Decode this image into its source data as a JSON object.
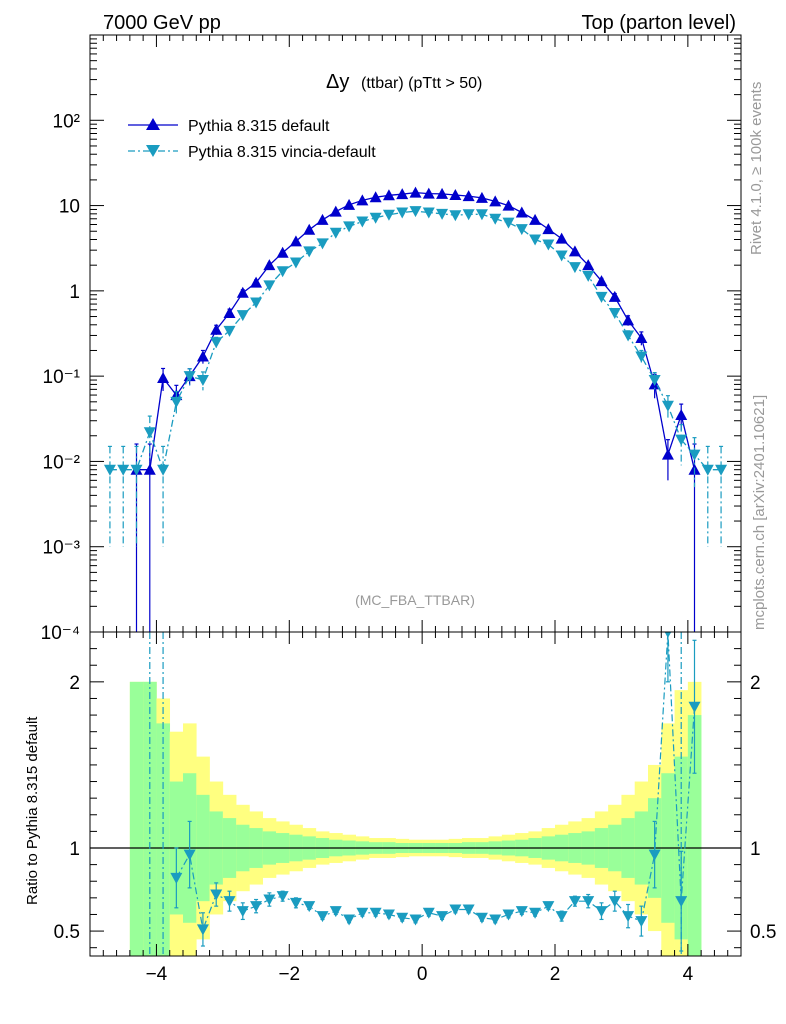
{
  "header": {
    "left": "7000 GeV pp",
    "right": "Top (parton level)"
  },
  "side_text": {
    "rivet": "Rivet 4.1.0, ≥ 100k events",
    "mcplots": "mcplots.cern.ch [arXiv:2401.10621]"
  },
  "chart_data": {
    "type": "line",
    "title_main": "Δy",
    "title_sub": "(ttbar) (pTtt > 50)",
    "analysis_id": "(MC_FBA_TTBAR)",
    "xlim": [
      -5,
      4.8
    ],
    "x_ticks": [
      -4,
      -2,
      0,
      2,
      4
    ],
    "x_tick_labels": [
      "−4",
      "−2",
      "0",
      "2",
      "4"
    ],
    "main": {
      "yscale": "log",
      "ylim": [
        0.0001,
        1000
      ],
      "y_ticks": [
        0.0001,
        0.001,
        0.01,
        0.1,
        1,
        10,
        100
      ],
      "y_tick_labels": [
        "10⁻⁴",
        "10⁻³",
        "10⁻²",
        "10⁻¹",
        "1",
        "10",
        "10²"
      ]
    },
    "ratio": {
      "ylabel": "Ratio to Pythia 8.315 default",
      "ylim": [
        0.35,
        2.3
      ],
      "y_ticks": [
        0.5,
        1,
        2
      ],
      "y_tick_labels": [
        "0.5",
        "1",
        "2"
      ],
      "reference_line": 1
    },
    "series": [
      {
        "name": "Pythia 8.315 default",
        "color": "#0000cc",
        "marker": "triangle-up",
        "line_style": "solid",
        "x": [
          -4.3,
          -4.1,
          -3.9,
          -3.7,
          -3.5,
          -3.3,
          -3.1,
          -2.9,
          -2.7,
          -2.5,
          -2.3,
          -2.1,
          -1.9,
          -1.7,
          -1.5,
          -1.3,
          -1.1,
          -0.9,
          -0.7,
          -0.5,
          -0.3,
          -0.1,
          0.1,
          0.3,
          0.5,
          0.7,
          0.9,
          1.1,
          1.3,
          1.5,
          1.7,
          1.9,
          2.1,
          2.3,
          2.5,
          2.7,
          2.9,
          3.1,
          3.3,
          3.5,
          3.7,
          3.9,
          4.1
        ],
        "y": [
          0.008,
          0.008,
          0.095,
          0.06,
          0.1,
          0.17,
          0.35,
          0.55,
          0.95,
          1.25,
          2.0,
          2.8,
          3.8,
          5.2,
          6.8,
          8.5,
          10.2,
          11.5,
          12.5,
          13.2,
          13.6,
          14.2,
          13.8,
          13.7,
          13.3,
          12.9,
          12.3,
          11.2,
          10.0,
          8.3,
          6.8,
          5.3,
          4.1,
          2.9,
          2.0,
          1.3,
          0.85,
          0.45,
          0.28,
          0.08,
          0.012,
          0.035,
          0.008
        ],
        "yerr": [
          0.008,
          0.008,
          0.028,
          0.018,
          0.022,
          0.03,
          0.045,
          0.06,
          0.08,
          0.09,
          0.12,
          0.15,
          0.18,
          0.2,
          0.25,
          0.28,
          0.3,
          0.32,
          0.34,
          0.35,
          0.36,
          0.36,
          0.36,
          0.36,
          0.35,
          0.34,
          0.33,
          0.31,
          0.29,
          0.27,
          0.24,
          0.21,
          0.18,
          0.15,
          0.12,
          0.1,
          0.08,
          0.06,
          0.05,
          0.025,
          0.006,
          0.012,
          0.008
        ]
      },
      {
        "name": "Pythia 8.315 vincia-default",
        "color": "#1a9cc0",
        "marker": "triangle-down",
        "line_style": "dashdot",
        "x": [
          -4.7,
          -4.5,
          -4.3,
          -4.1,
          -3.9,
          -3.7,
          -3.5,
          -3.3,
          -3.1,
          -2.9,
          -2.7,
          -2.5,
          -2.3,
          -2.1,
          -1.9,
          -1.7,
          -1.5,
          -1.3,
          -1.1,
          -0.9,
          -0.7,
          -0.5,
          -0.3,
          -0.1,
          0.1,
          0.3,
          0.5,
          0.7,
          0.9,
          1.1,
          1.3,
          1.5,
          1.7,
          1.9,
          2.1,
          2.3,
          2.5,
          2.7,
          2.9,
          3.1,
          3.3,
          3.5,
          3.7,
          3.9,
          4.1,
          4.3,
          4.5
        ],
        "y": [
          0.008,
          0.008,
          0.008,
          0.022,
          0.008,
          0.05,
          0.1,
          0.09,
          0.25,
          0.34,
          0.52,
          0.73,
          1.16,
          1.7,
          2.15,
          2.9,
          3.6,
          4.8,
          5.7,
          6.5,
          7.2,
          7.8,
          8.3,
          8.6,
          8.3,
          8.0,
          7.7,
          7.9,
          7.9,
          7.0,
          6.3,
          5.3,
          4.0,
          3.5,
          2.6,
          1.9,
          1.5,
          0.85,
          0.55,
          0.3,
          0.17,
          0.09,
          0.045,
          0.018,
          0.012,
          0.008,
          0.008
        ],
        "yerr": [
          0.007,
          0.007,
          0.007,
          0.012,
          0.007,
          0.016,
          0.022,
          0.022,
          0.035,
          0.04,
          0.05,
          0.06,
          0.08,
          0.09,
          0.1,
          0.12,
          0.13,
          0.15,
          0.17,
          0.18,
          0.19,
          0.2,
          0.2,
          0.2,
          0.2,
          0.2,
          0.2,
          0.2,
          0.2,
          0.19,
          0.18,
          0.16,
          0.14,
          0.13,
          0.11,
          0.1,
          0.08,
          0.06,
          0.05,
          0.04,
          0.03,
          0.02,
          0.014,
          0.009,
          0.007,
          0.007,
          0.007
        ]
      }
    ],
    "ratio_series": {
      "name": "vincia-default / default",
      "color": "#1a9cc0",
      "x": [
        -3.7,
        -3.5,
        -3.3,
        -3.1,
        -2.9,
        -2.7,
        -2.5,
        -2.3,
        -2.1,
        -1.9,
        -1.7,
        -1.5,
        -1.3,
        -1.1,
        -0.9,
        -0.7,
        -0.5,
        -0.3,
        -0.1,
        0.1,
        0.3,
        0.5,
        0.7,
        0.9,
        1.1,
        1.3,
        1.5,
        1.7,
        1.9,
        2.1,
        2.3,
        2.5,
        2.7,
        2.9,
        3.1,
        3.3,
        3.5,
        3.7,
        3.9,
        4.1
      ],
      "y": [
        0.82,
        0.96,
        0.51,
        0.72,
        0.68,
        0.62,
        0.65,
        0.69,
        0.71,
        0.67,
        0.65,
        0.59,
        0.62,
        0.57,
        0.61,
        0.61,
        0.6,
        0.58,
        0.57,
        0.61,
        0.59,
        0.63,
        0.63,
        0.58,
        0.57,
        0.6,
        0.62,
        0.61,
        0.65,
        0.59,
        0.68,
        0.68,
        0.62,
        0.68,
        0.59,
        0.56,
        0.96,
        2.3,
        0.68,
        1.85
      ],
      "yerr": [
        0.18,
        0.2,
        0.1,
        0.07,
        0.06,
        0.05,
        0.04,
        0.04,
        0.03,
        0.03,
        0.02,
        0.02,
        0.02,
        0.02,
        0.02,
        0.02,
        0.02,
        0.02,
        0.02,
        0.02,
        0.02,
        0.02,
        0.02,
        0.02,
        0.02,
        0.02,
        0.02,
        0.02,
        0.02,
        0.03,
        0.03,
        0.04,
        0.05,
        0.06,
        0.07,
        0.09,
        0.2,
        0.3,
        0.3,
        0.4
      ]
    },
    "uncertainty_bands": {
      "bin_edges": [
        -4.4,
        -4.2,
        -4.0,
        -3.8,
        -3.6,
        -3.4,
        -3.2,
        -3.0,
        -2.8,
        -2.6,
        -2.4,
        -2.2,
        -2.0,
        -1.8,
        -1.6,
        -1.4,
        -1.2,
        -1.0,
        -0.8,
        -0.6,
        -0.4,
        -0.2,
        0.0,
        0.2,
        0.4,
        0.6,
        0.8,
        1.0,
        1.2,
        1.4,
        1.6,
        1.8,
        2.0,
        2.2,
        2.4,
        2.6,
        2.8,
        3.0,
        3.2,
        3.4,
        3.6,
        3.8,
        4.0,
        4.2
      ],
      "green_half_width": [
        1.0,
        1.0,
        0.75,
        0.4,
        0.45,
        0.32,
        0.22,
        0.18,
        0.14,
        0.12,
        0.1,
        0.09,
        0.08,
        0.07,
        0.06,
        0.05,
        0.045,
        0.04,
        0.035,
        0.035,
        0.03,
        0.03,
        0.03,
        0.03,
        0.03,
        0.035,
        0.035,
        0.04,
        0.045,
        0.05,
        0.06,
        0.07,
        0.08,
        0.09,
        0.1,
        0.12,
        0.14,
        0.18,
        0.22,
        0.3,
        0.45,
        0.55,
        0.8,
        1.0
      ],
      "yellow_half_width": [
        1.0,
        1.0,
        0.9,
        0.7,
        0.75,
        0.55,
        0.4,
        0.32,
        0.26,
        0.22,
        0.18,
        0.16,
        0.14,
        0.12,
        0.1,
        0.09,
        0.08,
        0.07,
        0.06,
        0.06,
        0.055,
        0.05,
        0.05,
        0.05,
        0.055,
        0.06,
        0.06,
        0.07,
        0.08,
        0.09,
        0.1,
        0.12,
        0.14,
        0.16,
        0.18,
        0.22,
        0.26,
        0.32,
        0.4,
        0.5,
        0.75,
        0.95,
        1.0,
        1.3
      ],
      "green_color": "#99ff99",
      "yellow_color": "#ffff80"
    }
  }
}
